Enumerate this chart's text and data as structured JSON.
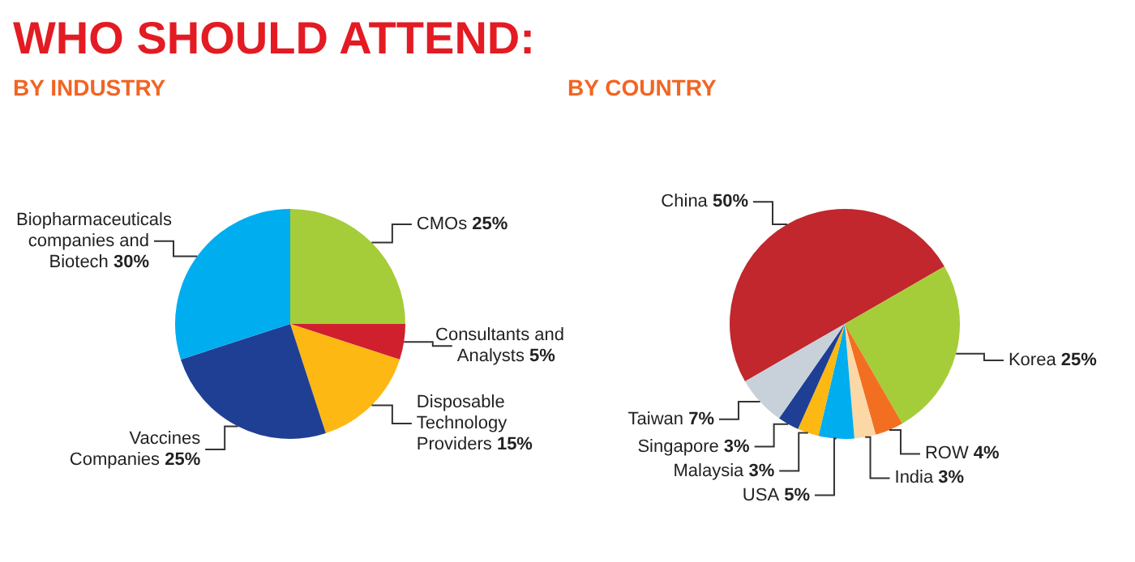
{
  "chart_data": [
    {
      "type": "pie",
      "title": "WHO SHOULD ATTEND:",
      "subtitle": "BY INDUSTRY",
      "categories": [
        "CMOs",
        "Consultants and Analysts",
        "Disposable Technology Providers",
        "Vaccines Companies",
        "Biopharmaceuticals companies and Biotech"
      ],
      "values": [
        25,
        5,
        15,
        25,
        30
      ],
      "colors": [
        "#a5cd39",
        "#d0202e",
        "#fdb813",
        "#1f3f95",
        "#00adef"
      ],
      "value_labels": [
        "25%",
        "5%",
        "15%",
        "25%",
        "30%"
      ]
    },
    {
      "type": "pie",
      "title": "BY COUNTRY",
      "categories": [
        "China",
        "Korea",
        "ROW",
        "India",
        "USA",
        "Malaysia",
        "Singapore",
        "Taiwan"
      ],
      "values": [
        50,
        25,
        4,
        3,
        5,
        3,
        3,
        7
      ],
      "colors": [
        "#c1272d",
        "#a5cd39",
        "#f26f21",
        "#fbd8a5",
        "#00adef",
        "#fdb813",
        "#1f3f95",
        "#c8d1da"
      ],
      "value_labels": [
        "50%",
        "25%",
        "4%",
        "3%",
        "5%",
        "3%",
        "3%",
        "7%"
      ]
    }
  ]
}
